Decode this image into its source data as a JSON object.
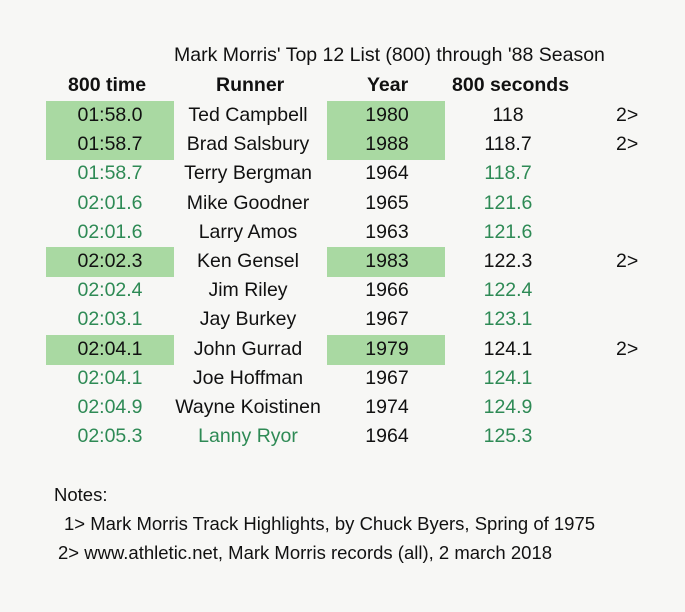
{
  "title": "Mark Morris' Top 12 List (800) through '88 Season",
  "headers": {
    "time": "800 time",
    "runner": "Runner",
    "year": "Year",
    "seconds": "800 seconds"
  },
  "colors": {
    "highlight": "#a9d9a2",
    "green_text": "#2e8a55",
    "black_text": "#111111"
  },
  "rows": [
    {
      "time": "01:58.0",
      "runner": "Ted Campbell",
      "year": "1980",
      "seconds": "118",
      "note": "2>"
    },
    {
      "time": "01:58.7",
      "runner": "Brad Salsbury",
      "year": "1988",
      "seconds": "118.7",
      "note": "2>"
    },
    {
      "time": "01:58.7",
      "runner": "Terry Bergman",
      "year": "1964",
      "seconds": "118.7",
      "note": ""
    },
    {
      "time": "02:01.6",
      "runner": "Mike Goodner",
      "year": "1965",
      "seconds": "121.6",
      "note": ""
    },
    {
      "time": "02:01.6",
      "runner": "Larry Amos",
      "year": "1963",
      "seconds": "121.6",
      "note": ""
    },
    {
      "time": "02:02.3",
      "runner": "Ken Gensel",
      "year": "1983",
      "seconds": "122.3",
      "note": "2>"
    },
    {
      "time": "02:02.4",
      "runner": "Jim Riley",
      "year": "1966",
      "seconds": "122.4",
      "note": ""
    },
    {
      "time": "02:03.1",
      "runner": "Jay Burkey",
      "year": "1967",
      "seconds": "123.1",
      "note": ""
    },
    {
      "time": "02:04.1",
      "runner": "John Gurrad",
      "year": "1979",
      "seconds": "124.1",
      "note": "2>"
    },
    {
      "time": "02:04.1",
      "runner": "Joe Hoffman",
      "year": "1967",
      "seconds": "124.1",
      "note": ""
    },
    {
      "time": "02:04.9",
      "runner": "Wayne Koistinen",
      "year": "1974",
      "seconds": "124.9",
      "note": ""
    },
    {
      "time": "02:05.3",
      "runner": "Lanny Ryor",
      "year": "1964",
      "seconds": "125.3",
      "note": ""
    }
  ],
  "notes": {
    "heading": "Notes:",
    "items": [
      "1>  Mark Morris Track Highlights, by Chuck Byers, Spring of 1975",
      "2> www.athletic.net, Mark Morris records (all), 2 march 2018"
    ]
  }
}
